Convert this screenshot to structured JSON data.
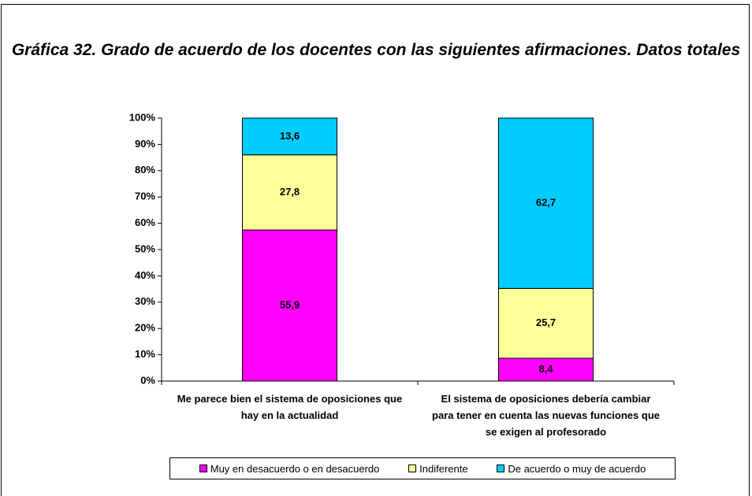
{
  "chart_data": {
    "type": "bar",
    "stack": "percent",
    "title": "Gráfica 32. Grado de acuerdo de los docentes con las siguientes afirmaciones. Datos totales",
    "categories": [
      "Me parece bien el sistema de oposiciones que hay en la actualidad",
      "El sistema de oposiciones debería cambiar para tener en cuenta las nuevas funciones que se exigen al profesorado"
    ],
    "series": [
      {
        "name": "Muy en desacuerdo o en desacuerdo",
        "color": "#ff00ff",
        "values": [
          55.9,
          8.4
        ],
        "value_labels": [
          "55,9",
          "8,4"
        ]
      },
      {
        "name": "Indiferente",
        "color": "#ffff99",
        "values": [
          27.8,
          25.7
        ],
        "value_labels": [
          "27,8",
          "25,7"
        ]
      },
      {
        "name": "De acuerdo o muy de acuerdo",
        "color": "#00ccff",
        "values": [
          13.6,
          62.7
        ],
        "value_labels": [
          "13,6",
          "62,7"
        ]
      }
    ],
    "ylim": [
      0,
      100
    ],
    "yticks": [
      {
        "value": 0,
        "label": "0%"
      },
      {
        "value": 10,
        "label": "10%"
      },
      {
        "value": 20,
        "label": "20%"
      },
      {
        "value": 30,
        "label": "30%"
      },
      {
        "value": 40,
        "label": "40%"
      },
      {
        "value": 50,
        "label": "50%"
      },
      {
        "value": 60,
        "label": "60%"
      },
      {
        "value": 70,
        "label": "70%"
      },
      {
        "value": 80,
        "label": "80%"
      },
      {
        "value": 90,
        "label": "90%"
      },
      {
        "value": 100,
        "label": "100%"
      }
    ],
    "grid": false,
    "legend": "bottom"
  }
}
